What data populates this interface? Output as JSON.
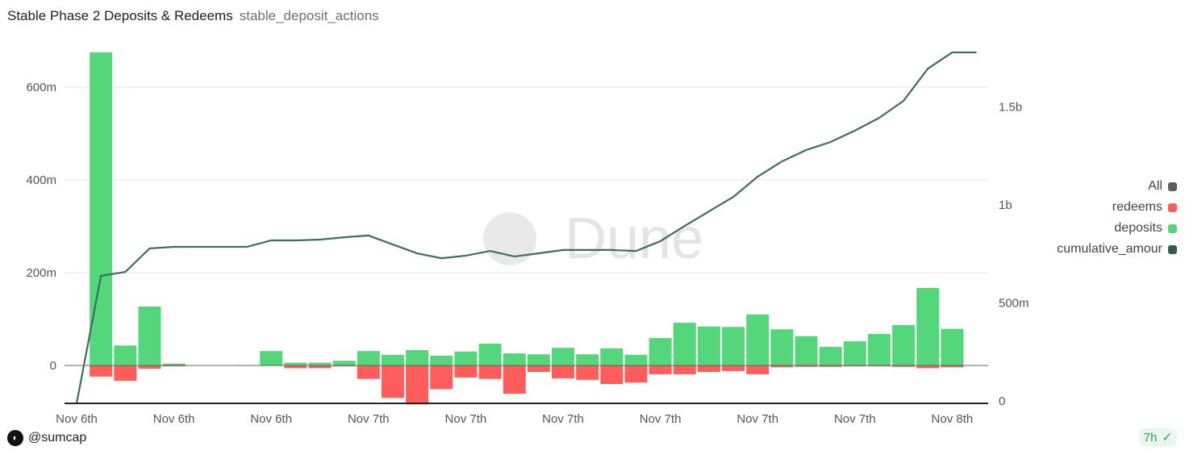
{
  "header": {
    "title": "Stable Phase 2 Deposits & Redeems",
    "subtitle": "stable_deposit_actions"
  },
  "footer": {
    "author": "@sumcap",
    "age": "7h",
    "age_icon": "check-badge-icon"
  },
  "watermark": "Dune",
  "colors": {
    "deposits": "#54d67a",
    "redeems": "#ff5c5c",
    "cumulative": "#3f6f58",
    "all": "#5c5c63"
  },
  "legend": [
    {
      "label": "All",
      "color": "#5c5c63"
    },
    {
      "label": "redeems",
      "color": "#ff5c5c"
    },
    {
      "label": "deposits",
      "color": "#54d67a"
    },
    {
      "label": "cumulative_amour",
      "color": "#315c48"
    }
  ],
  "chart_data": {
    "type": "bar",
    "title": "Stable Phase 2 Deposits & Redeems",
    "x_tick_labels": [
      "Nov 6th",
      "Nov 6th",
      "Nov 6th",
      "Nov 7th",
      "Nov 7th",
      "Nov 7th",
      "Nov 7th",
      "Nov 7th",
      "Nov 7th",
      "Nov 8th"
    ],
    "x_tick_every": 4,
    "left_axis": {
      "ticks": [
        0,
        200,
        400,
        600
      ],
      "tick_labels": [
        "0",
        "200m",
        "400m",
        "600m"
      ],
      "range": [
        -82,
        700
      ],
      "unit": "millions"
    },
    "right_axis": {
      "ticks": [
        0,
        500,
        1000,
        1500
      ],
      "tick_labels": [
        "0",
        "500m",
        "1b",
        "1.5b"
      ],
      "range": [
        0,
        1840
      ],
      "unit": "millions"
    },
    "grid": true,
    "legend_position": "right",
    "series": [
      {
        "name": "deposits",
        "type": "bar",
        "axis": "left",
        "values": [
          0,
          675,
          43,
          127,
          4,
          0.5,
          0,
          0.5,
          31,
          6,
          6,
          10,
          31,
          23,
          33,
          21,
          30,
          47,
          26,
          24,
          38,
          24,
          37,
          23,
          59,
          92,
          84,
          83,
          110,
          78,
          63,
          40,
          52,
          68,
          87,
          167,
          79,
          0.5
        ]
      },
      {
        "name": "redeems",
        "type": "bar",
        "axis": "left",
        "values": [
          0,
          -24,
          -33,
          -7,
          -2,
          0,
          0,
          -1,
          -1,
          -6,
          -6,
          -2,
          -29,
          -70,
          -84,
          -51,
          -26,
          -29,
          -61,
          -14,
          -28,
          -31,
          -40,
          -37,
          -19,
          -19,
          -14,
          -12,
          -19,
          -4,
          -3,
          -3,
          -2,
          -2,
          -3,
          -6,
          -4,
          0
        ]
      },
      {
        "name": "cumulative_amour",
        "type": "line",
        "axis": "right",
        "values": [
          0,
          638,
          658,
          778,
          786,
          786,
          786,
          786,
          819,
          819,
          823,
          835,
          844,
          798,
          753,
          728,
          741,
          765,
          737,
          753,
          770,
          770,
          770,
          765,
          815,
          893,
          967,
          1041,
          1144,
          1222,
          1280,
          1321,
          1379,
          1444,
          1531,
          1695,
          1778,
          1778
        ]
      }
    ]
  }
}
